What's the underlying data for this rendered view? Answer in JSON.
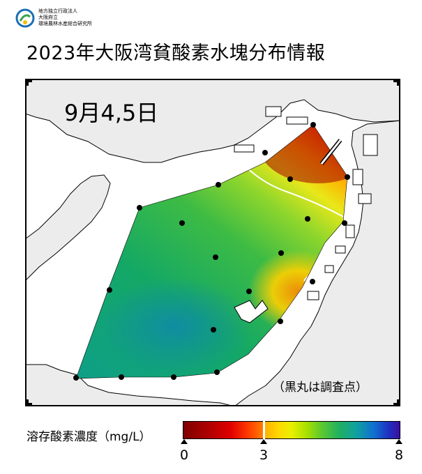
{
  "org": {
    "lines": [
      "地方独立行政法人",
      "大阪府立",
      "環境農林水産総合研究所"
    ]
  },
  "title": "2023年大阪湾貧酸素水塊分布情報",
  "date_label": "9月4,5日",
  "note": "（黒丸は調査点）",
  "legend": {
    "title": "溶存酸素濃度（mg/L）",
    "min": 0,
    "max": 8,
    "threshold": 3,
    "tick_labels": [
      "0",
      "3",
      "8"
    ],
    "colors": {
      "low": "#7f0000",
      "mid": "#ffd800",
      "high": "#3a10a0",
      "threshold_line": "#ffffff"
    }
  },
  "map": {
    "type": "contour map",
    "stations_count": 22,
    "land_color": "#ececec",
    "water_color": "#ffffff"
  }
}
